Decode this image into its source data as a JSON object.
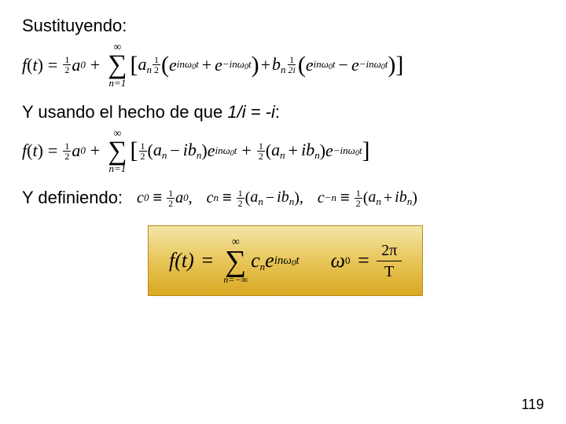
{
  "headings": {
    "h1": "Sustituyendo:",
    "h2_pre": "Y usando el hecho de que ",
    "h2_ital": "1/i = -i",
    "h2_post": ":",
    "h3": "Y definiendo:"
  },
  "sym": {
    "f": "f",
    "t": "t",
    "eq": "=",
    "plus": "+",
    "minus": "−",
    "a": "a",
    "b": "b",
    "c": "c",
    "e": "e",
    "i": "i",
    "n": "n",
    "zero": "0",
    "omega": "ω",
    "pi": "π",
    "T": "T",
    "two": "2",
    "half_num": "1",
    "half_den": "2",
    "half2i_den": "2i",
    "inf": "∞",
    "ninf": "−∞",
    "neq1": "n=1",
    "Sigma": "∑",
    "lparen": "(",
    "rparen": ")",
    "lbrack": "[",
    "rbrack": "]",
    "comma": ",",
    "ident": "≡",
    "minus_n": "−n"
  },
  "exp": {
    "p": "inω",
    "m": "−inω",
    "zero_t": "t"
  },
  "page": "119"
}
